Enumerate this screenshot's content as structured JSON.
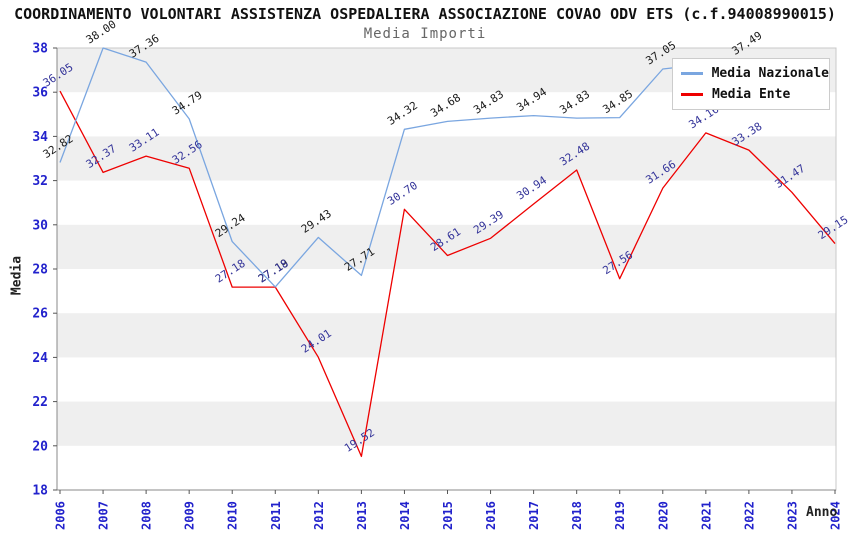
{
  "title": "COORDINAMENTO VOLONTARI ASSISTENZA OSPEDALIERA ASSOCIAZIONE COVAO ODV ETS (c.f.94008990015)",
  "subtitle": "Media Importi",
  "axes": {
    "y_label": "Media",
    "x_label": "Anno",
    "y_ticks": [
      18,
      20,
      22,
      24,
      26,
      28,
      30,
      32,
      34,
      36,
      38
    ],
    "x_ticks": [
      "2006",
      "2007",
      "2008",
      "2009",
      "2010",
      "2011",
      "2012",
      "2013",
      "2014",
      "2015",
      "2016",
      "2017",
      "2018",
      "2019",
      "2020",
      "2021",
      "2022",
      "2023",
      "2024"
    ]
  },
  "legend": {
    "position": "top-right",
    "items": [
      {
        "label": "Media Nazionale",
        "color": "#7AA6E0"
      },
      {
        "label": "Media Ente",
        "color": "#EE0000"
      }
    ]
  },
  "colors": {
    "background": "#FFFFFF",
    "band": "#EFEFEF",
    "plot_border": "#C8C8C8",
    "axis_spine": "#888888",
    "tick_text": "#2222CC",
    "title": "#111111",
    "subtitle": "#666666",
    "legend_border": "#CCCCCC"
  },
  "chart_data": {
    "type": "line",
    "title": "Media Importi",
    "xlabel": "Anno",
    "ylabel": "Media",
    "ylim": [
      18,
      38
    ],
    "grid": "alternating-horizontal-bands",
    "band_color": "#EFEFEF",
    "legend_position": "top-right",
    "categories": [
      "2006",
      "2007",
      "2008",
      "2009",
      "2010",
      "2011",
      "2012",
      "2013",
      "2014",
      "2015",
      "2016",
      "2017",
      "2018",
      "2019",
      "2020",
      "2021",
      "2022",
      "2023",
      "2024"
    ],
    "series": [
      {
        "name": "Media Nazionale",
        "color": "#7AA6E0",
        "label_color": "#1A1A1A",
        "values": [
          32.82,
          38.0,
          37.36,
          34.79,
          29.24,
          27.19,
          29.43,
          27.71,
          34.32,
          34.68,
          34.83,
          34.94,
          34.83,
          34.85,
          37.05,
          null,
          37.49,
          null,
          null
        ]
      },
      {
        "name": "Media Ente",
        "color": "#EE0000",
        "label_color": "#333399",
        "values": [
          36.05,
          32.37,
          33.11,
          32.56,
          27.18,
          27.18,
          24.01,
          19.52,
          30.7,
          28.61,
          29.39,
          30.94,
          32.48,
          27.56,
          31.66,
          34.16,
          33.38,
          31.47,
          29.15
        ]
      }
    ]
  }
}
